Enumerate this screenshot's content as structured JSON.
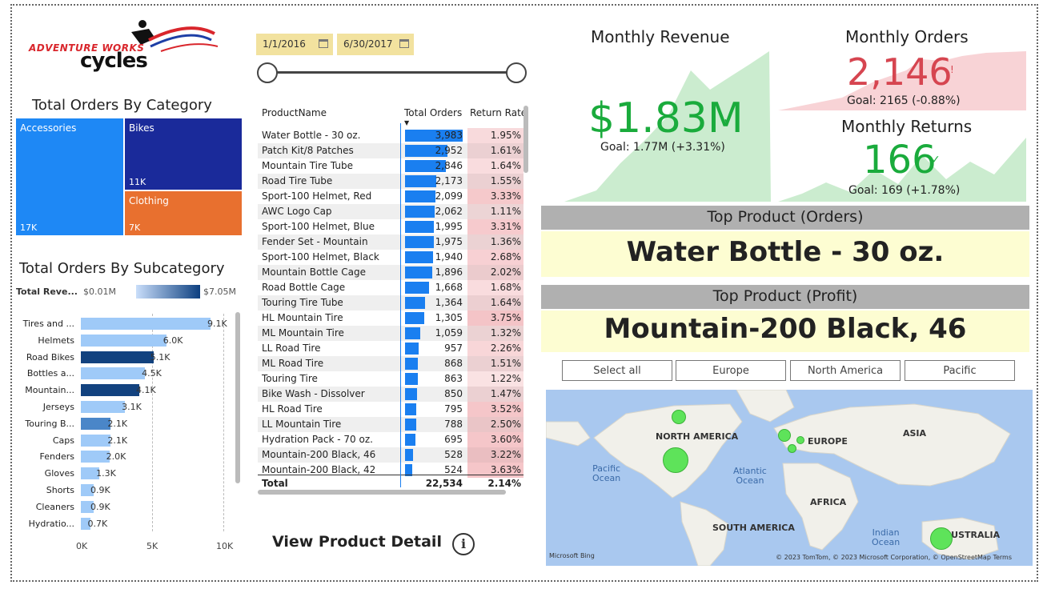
{
  "logo": {
    "top_text": "ADVENTURE WORKS",
    "main_text": "cycles"
  },
  "category": {
    "title": "Total Orders By Category",
    "items": [
      {
        "name": "Accessories",
        "value": "17K",
        "color": "#1e88f5"
      },
      {
        "name": "Bikes",
        "value": "11K",
        "color": "#1a2a9a"
      },
      {
        "name": "Clothing",
        "value": "7K",
        "color": "#e8702f"
      }
    ]
  },
  "subcategory": {
    "title": "Total Orders By Subcategory",
    "legend_title": "Total Reve...",
    "legend_min": "$0.01M",
    "legend_max": "$7.05M",
    "axis": [
      "0K",
      "5K",
      "10K"
    ],
    "xmax": 10,
    "items": [
      {
        "label": "Tires and ...",
        "value": 9.1,
        "text": "9.1K",
        "color": "#9fcaf8"
      },
      {
        "label": "Helmets",
        "value": 6.0,
        "text": "6.0K",
        "color": "#9fcaf8"
      },
      {
        "label": "Road Bikes",
        "value": 5.1,
        "text": "5.1K",
        "color": "#12427f"
      },
      {
        "label": "Bottles a...",
        "value": 4.5,
        "text": "4.5K",
        "color": "#9fcaf8"
      },
      {
        "label": "Mountain...",
        "value": 4.1,
        "text": "4.1K",
        "color": "#12427f"
      },
      {
        "label": "Jerseys",
        "value": 3.1,
        "text": "3.1K",
        "color": "#9fcaf8"
      },
      {
        "label": "Touring B...",
        "value": 2.1,
        "text": "2.1K",
        "color": "#4a86c8"
      },
      {
        "label": "Caps",
        "value": 2.1,
        "text": "2.1K",
        "color": "#9fcaf8"
      },
      {
        "label": "Fenders",
        "value": 2.0,
        "text": "2.0K",
        "color": "#9fcaf8"
      },
      {
        "label": "Gloves",
        "value": 1.3,
        "text": "1.3K",
        "color": "#9fcaf8"
      },
      {
        "label": "Shorts",
        "value": 0.9,
        "text": "0.9K",
        "color": "#9fcaf8"
      },
      {
        "label": "Cleaners",
        "value": 0.9,
        "text": "0.9K",
        "color": "#9fcaf8"
      },
      {
        "label": "Hydratio...",
        "value": 0.7,
        "text": "0.7K",
        "color": "#9fcaf8"
      }
    ]
  },
  "date_slicer": {
    "start": "1/1/2016",
    "end": "6/30/2017"
  },
  "product_table": {
    "headers": [
      "ProductName",
      "Total Orders",
      "Return Rate"
    ],
    "max_orders": 3983,
    "rows": [
      {
        "name": "Water Bottle - 30 oz.",
        "orders": 3983,
        "orders_text": "3,983",
        "rate": "1.95%",
        "rate_val": 1.95
      },
      {
        "name": "Patch Kit/8 Patches",
        "orders": 2952,
        "orders_text": "2,952",
        "rate": "1.61%",
        "rate_val": 1.61
      },
      {
        "name": "Mountain Tire Tube",
        "orders": 2846,
        "orders_text": "2,846",
        "rate": "1.64%",
        "rate_val": 1.64
      },
      {
        "name": "Road Tire Tube",
        "orders": 2173,
        "orders_text": "2,173",
        "rate": "1.55%",
        "rate_val": 1.55
      },
      {
        "name": "Sport-100 Helmet, Red",
        "orders": 2099,
        "orders_text": "2,099",
        "rate": "3.33%",
        "rate_val": 3.33
      },
      {
        "name": "AWC Logo Cap",
        "orders": 2062,
        "orders_text": "2,062",
        "rate": "1.11%",
        "rate_val": 1.11
      },
      {
        "name": "Sport-100 Helmet, Blue",
        "orders": 1995,
        "orders_text": "1,995",
        "rate": "3.31%",
        "rate_val": 3.31
      },
      {
        "name": "Fender Set - Mountain",
        "orders": 1975,
        "orders_text": "1,975",
        "rate": "1.36%",
        "rate_val": 1.36
      },
      {
        "name": "Sport-100 Helmet, Black",
        "orders": 1940,
        "orders_text": "1,940",
        "rate": "2.68%",
        "rate_val": 2.68
      },
      {
        "name": "Mountain Bottle Cage",
        "orders": 1896,
        "orders_text": "1,896",
        "rate": "2.02%",
        "rate_val": 2.02
      },
      {
        "name": "Road Bottle Cage",
        "orders": 1668,
        "orders_text": "1,668",
        "rate": "1.68%",
        "rate_val": 1.68
      },
      {
        "name": "Touring Tire Tube",
        "orders": 1364,
        "orders_text": "1,364",
        "rate": "1.64%",
        "rate_val": 1.64
      },
      {
        "name": "HL Mountain Tire",
        "orders": 1305,
        "orders_text": "1,305",
        "rate": "3.75%",
        "rate_val": 3.75
      },
      {
        "name": "ML Mountain Tire",
        "orders": 1059,
        "orders_text": "1,059",
        "rate": "1.32%",
        "rate_val": 1.32
      },
      {
        "name": "LL Road Tire",
        "orders": 957,
        "orders_text": "957",
        "rate": "2.26%",
        "rate_val": 2.26
      },
      {
        "name": "ML Road Tire",
        "orders": 868,
        "orders_text": "868",
        "rate": "1.51%",
        "rate_val": 1.51
      },
      {
        "name": "Touring Tire",
        "orders": 863,
        "orders_text": "863",
        "rate": "1.22%",
        "rate_val": 1.22
      },
      {
        "name": "Bike Wash - Dissolver",
        "orders": 850,
        "orders_text": "850",
        "rate": "1.47%",
        "rate_val": 1.47
      },
      {
        "name": "HL Road Tire",
        "orders": 795,
        "orders_text": "795",
        "rate": "3.52%",
        "rate_val": 3.52
      },
      {
        "name": "LL Mountain Tire",
        "orders": 788,
        "orders_text": "788",
        "rate": "2.50%",
        "rate_val": 2.5
      },
      {
        "name": "Hydration Pack - 70 oz.",
        "orders": 695,
        "orders_text": "695",
        "rate": "3.60%",
        "rate_val": 3.6
      },
      {
        "name": "Mountain-200 Black, 46",
        "orders": 528,
        "orders_text": "528",
        "rate": "3.22%",
        "rate_val": 3.22
      },
      {
        "name": "Mountain-200 Black, 42",
        "orders": 524,
        "orders_text": "524",
        "rate": "3.63%",
        "rate_val": 3.63
      }
    ],
    "total_label": "Total",
    "total_orders": "22,534",
    "total_rate": "2.14%"
  },
  "view_detail": "View Product Detail",
  "info_glyph": "i",
  "kpis": {
    "revenue": {
      "title": "Monthly Revenue",
      "value": "$1.83M",
      "goal": "Goal: 1.77M (+3.31%)",
      "status": "✓",
      "color": "#1aab3c"
    },
    "orders": {
      "title": "Monthly Orders",
      "value": "2,146",
      "goal": "Goal: 2165 (-0.88%)",
      "status": "!",
      "color": "#d64550"
    },
    "returns": {
      "title": "Monthly Returns",
      "value": "166",
      "goal": "Goal: 169 (+1.78%)",
      "status": "✓",
      "color": "#1aab3c"
    }
  },
  "top_orders": {
    "title": "Top Product (Orders)",
    "value": "Water Bottle - 30 oz."
  },
  "top_profit": {
    "title": "Top Product (Profit)",
    "value": "Mountain-200 Black, 46"
  },
  "regions": [
    "Select all",
    "Europe",
    "North America",
    "Pacific"
  ],
  "map": {
    "labels": {
      "north_america": "NORTH AMERICA",
      "europe": "EUROPE",
      "asia": "ASIA",
      "africa": "AFRICA",
      "south_america": "SOUTH AMERICA",
      "australia": "AUSTRALIA"
    },
    "oceans": {
      "pacific": "Pacific\nOcean",
      "atlantic": "Atlantic\nOcean",
      "indian": "Indian\nOcean"
    },
    "bing": "Microsoft Bing",
    "attribution": "© 2023 TomTom, © 2023 Microsoft Corporation, © OpenStreetMap  Terms"
  }
}
